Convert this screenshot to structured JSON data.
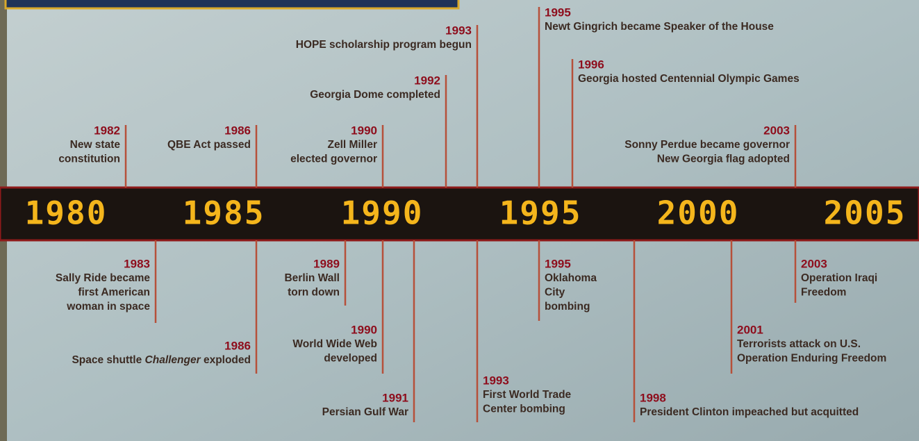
{
  "axis_labels": [
    "1980",
    "1985",
    "1990",
    "1995",
    "2000",
    "2005"
  ],
  "events_above": [
    {
      "year": "1982",
      "lines": [
        "New state",
        "constitution"
      ]
    },
    {
      "year": "1986",
      "lines": [
        "QBE Act passed"
      ]
    },
    {
      "year": "1990",
      "lines": [
        "Zell Miller",
        "elected governor"
      ]
    },
    {
      "year": "1992",
      "lines": [
        "Georgia Dome completed"
      ]
    },
    {
      "year": "1993",
      "lines": [
        "HOPE scholarship program begun"
      ]
    },
    {
      "year": "1995",
      "lines": [
        "Newt Gingrich became Speaker of the House"
      ]
    },
    {
      "year": "1996",
      "lines": [
        "Georgia hosted Centennial Olympic Games"
      ]
    },
    {
      "year": "2003",
      "lines": [
        "Sonny Perdue became governor",
        "New Georgia flag adopted"
      ]
    }
  ],
  "events_below": [
    {
      "year": "1983",
      "lines": [
        "Sally Ride became",
        "first American",
        "woman in space"
      ]
    },
    {
      "year": "1986",
      "lines": [
        [
          "Space shuttle ",
          "Challenger",
          " exploded"
        ]
      ]
    },
    {
      "year": "1989",
      "lines": [
        "Berlin Wall",
        "torn down"
      ]
    },
    {
      "year": "1990",
      "lines": [
        "World Wide Web",
        "developed"
      ]
    },
    {
      "year": "1991",
      "lines": [
        "Persian Gulf War"
      ]
    },
    {
      "year": "1993",
      "lines": [
        "First World Trade",
        "Center bombing"
      ]
    },
    {
      "year": "1995",
      "lines": [
        "Oklahoma",
        "City",
        "bombing"
      ]
    },
    {
      "year": "1998",
      "lines": [
        "President Clinton impeached but acquitted"
      ]
    },
    {
      "year": "2001",
      "lines": [
        "Terrorists attack on U.S.",
        "Operation Enduring Freedom"
      ]
    },
    {
      "year": "2003",
      "lines": [
        "Operation Iraqi",
        "Freedom"
      ]
    }
  ]
}
